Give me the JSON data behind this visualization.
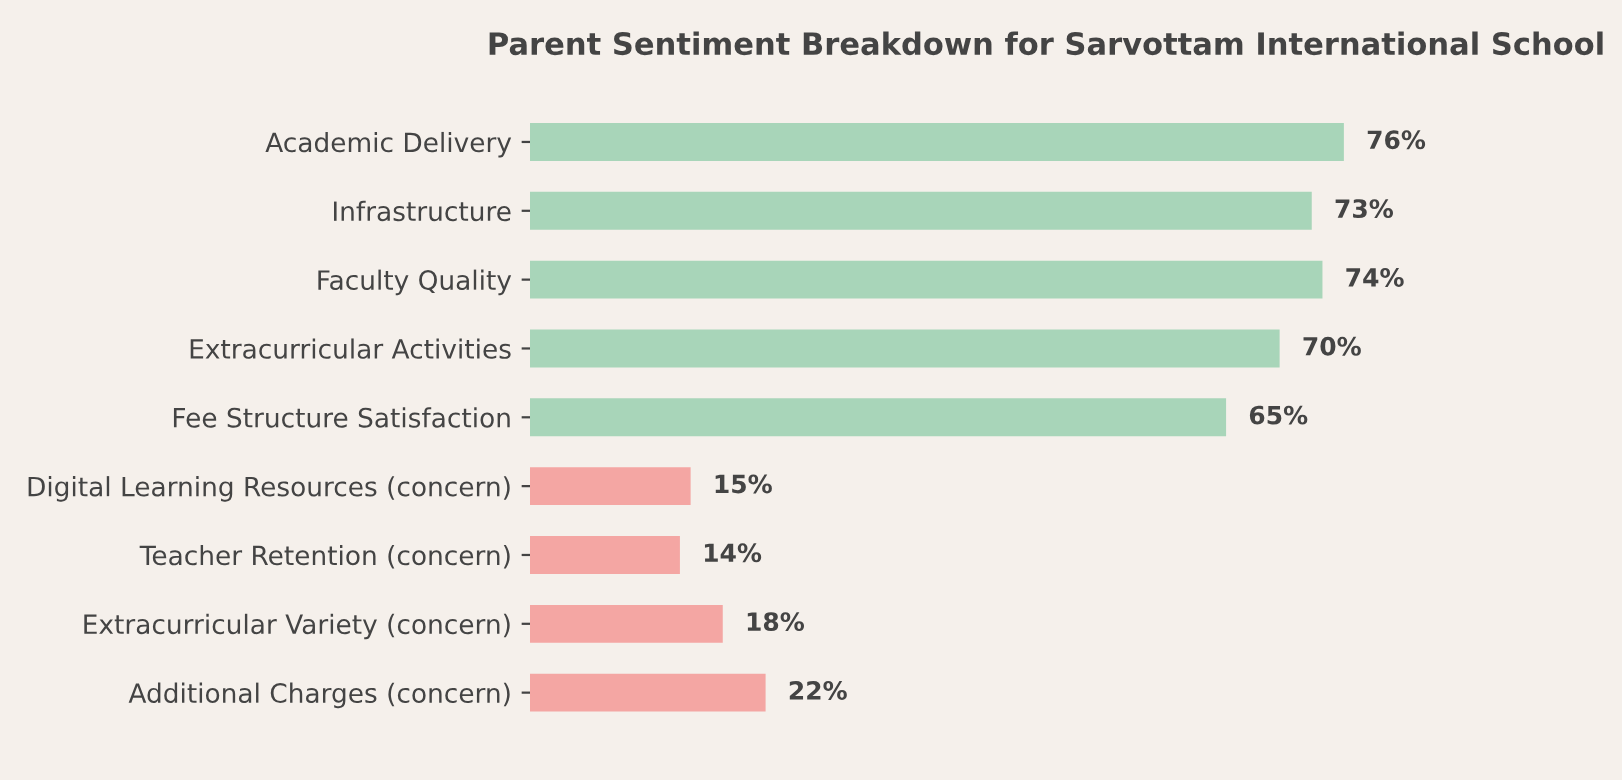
{
  "chart_data": {
    "type": "bar",
    "orientation": "horizontal",
    "title": "Parent Sentiment Breakdown for Sarvottam International School",
    "categories": [
      "Academic Delivery",
      "Infrastructure",
      "Faculty Quality",
      "Extracurricular Activities",
      "Fee Structure Satisfaction",
      "Digital Learning Resources (concern)",
      "Teacher Retention (concern)",
      "Extracurricular Variety (concern)",
      "Additional Charges (concern)"
    ],
    "values": [
      76,
      73,
      74,
      70,
      65,
      15,
      14,
      18,
      22
    ],
    "value_labels": [
      "76%",
      "73%",
      "74%",
      "70%",
      "65%",
      "15%",
      "14%",
      "18%",
      "22%"
    ],
    "colors": [
      "#a8d5b9",
      "#a8d5b9",
      "#a8d5b9",
      "#a8d5b9",
      "#a8d5b9",
      "#f4a6a3",
      "#f4a6a3",
      "#f4a6a3",
      "#f4a6a3"
    ],
    "grid": false,
    "legend": false
  }
}
